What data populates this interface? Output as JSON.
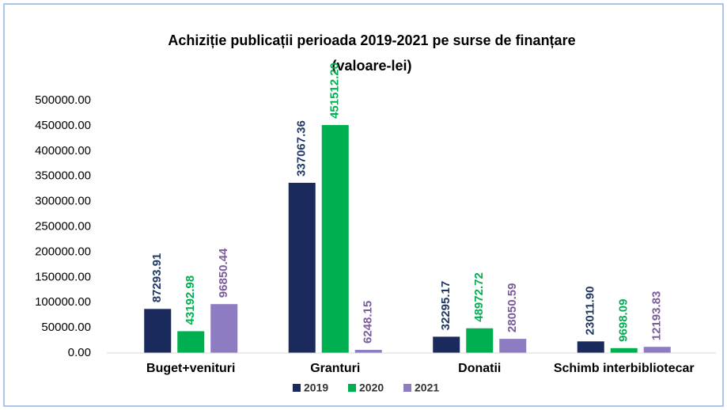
{
  "chart_data": {
    "type": "bar",
    "title": [
      "Achiziție publicații perioada 2019-2021 pe surse de finanțare",
      "(valoare-lei)"
    ],
    "categories": [
      "Buget+venituri",
      "Granturi",
      "Donatii",
      "Schimb interbibliotecar"
    ],
    "series": [
      {
        "name": "2019",
        "color": "#1b2a5c",
        "label_color": "#1f3864",
        "values": [
          87293.91,
          337067.36,
          32295.17,
          23011.9
        ],
        "value_labels": [
          "87293.91",
          "337067.36",
          "32295.17",
          "23011.90"
        ]
      },
      {
        "name": "2020",
        "color": "#00b050",
        "label_color": "#00b050",
        "values": [
          43192.98,
          451512.2,
          48972.72,
          9698.09
        ],
        "value_labels": [
          "43192.98",
          "451512.20",
          "48972.72",
          "9698.09"
        ]
      },
      {
        "name": "2021",
        "color": "#8e7cc3",
        "label_color": "#7b5c9b",
        "values": [
          96850.44,
          6248.15,
          28050.59,
          12193.83
        ],
        "value_labels": [
          "96850.44",
          "6248.15",
          "28050.59",
          "12193.83"
        ]
      }
    ],
    "ylim": [
      0,
      500000
    ],
    "yticks": [
      {
        "value": 0,
        "label": "0.00"
      },
      {
        "value": 50000,
        "label": "50000.00"
      },
      {
        "value": 100000,
        "label": "100000.00"
      },
      {
        "value": 150000,
        "label": "150000.00"
      },
      {
        "value": 200000,
        "label": "200000.00"
      },
      {
        "value": 250000,
        "label": "250000.00"
      },
      {
        "value": 300000,
        "label": "300000.00"
      },
      {
        "value": 350000,
        "label": "350000.00"
      },
      {
        "value": 400000,
        "label": "400000.00"
      },
      {
        "value": 450000,
        "label": "450000.00"
      },
      {
        "value": 500000,
        "label": "500000.00"
      }
    ],
    "grid": false,
    "legend": "bottom"
  }
}
